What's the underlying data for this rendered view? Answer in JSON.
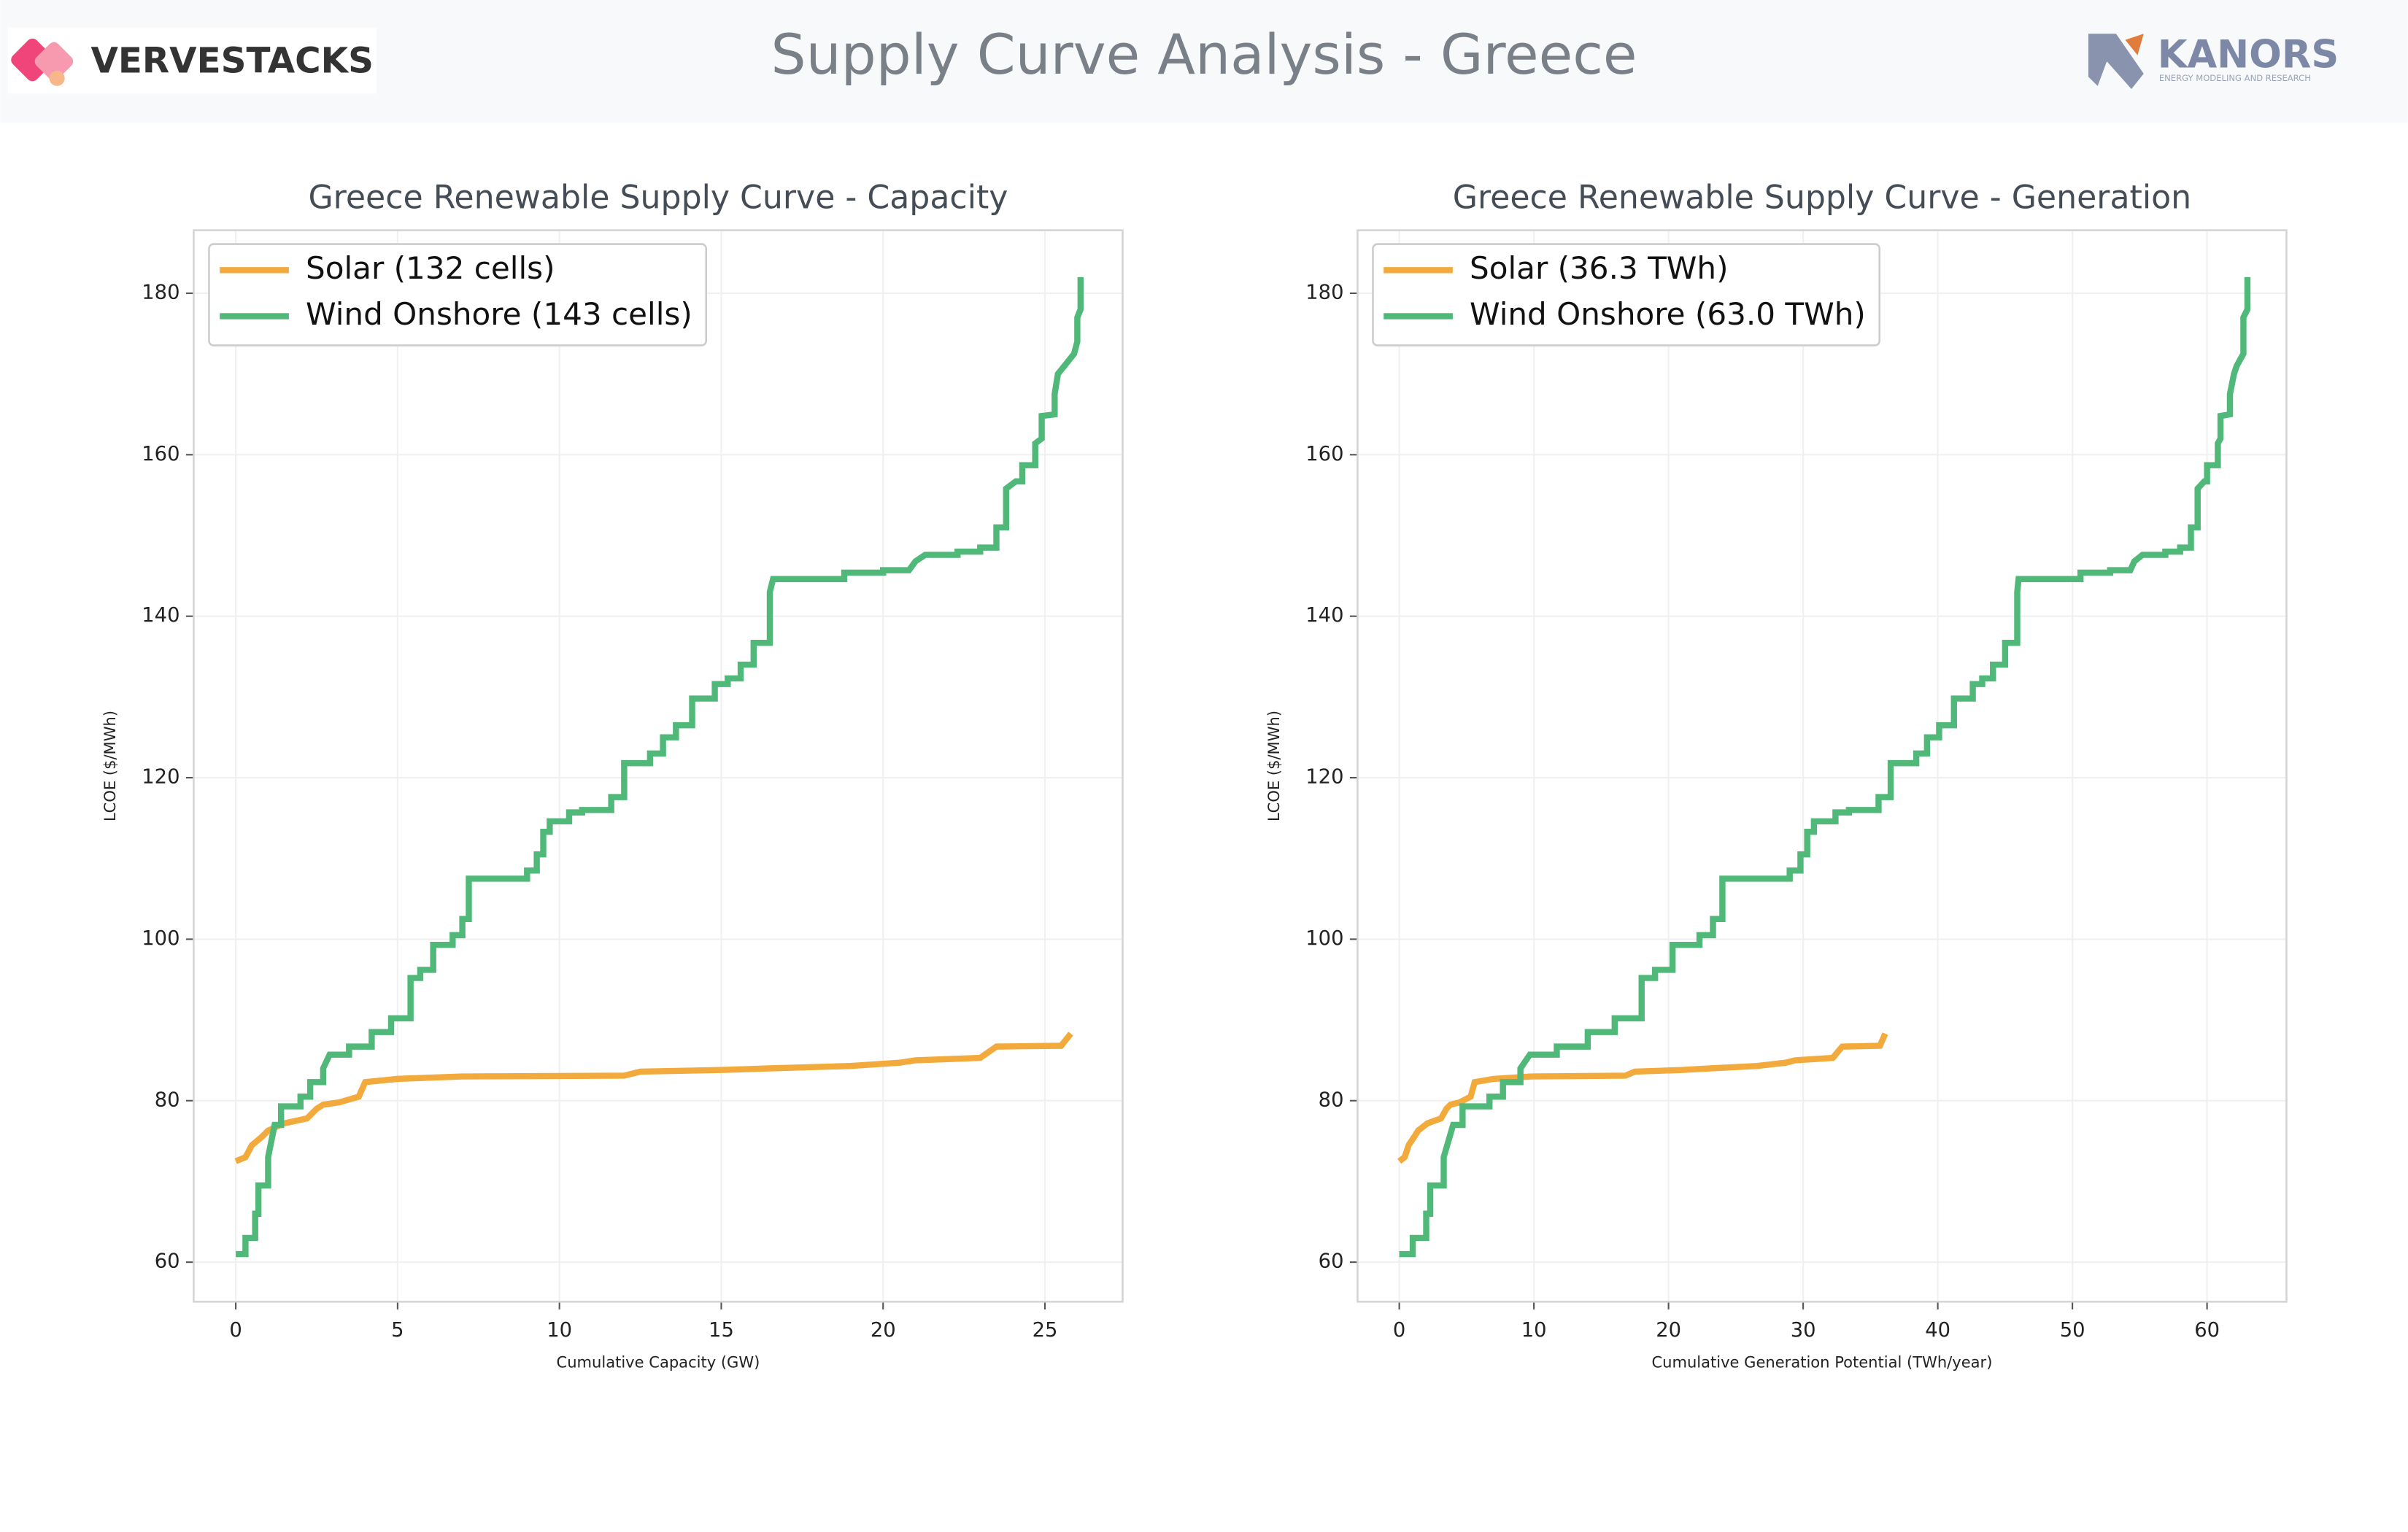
{
  "header": {
    "title": "Supply Curve Analysis - Greece",
    "logo_left": "VERVESTACKS",
    "logo_right": "KANORS",
    "logo_right_tagline": "ENERGY MODELING AND RESEARCH"
  },
  "chart_data": [
    {
      "type": "line",
      "title": "Greece Renewable Supply Curve - Capacity",
      "x_label": "Cumulative Capacity (GW)",
      "y_label": "LCOE ($/MWh)",
      "xlim": [
        -1.3,
        27.4
      ],
      "ylim": [
        55.1,
        187.8
      ],
      "xticks": [
        0,
        5,
        10,
        15,
        20,
        25
      ],
      "yticks": [
        60,
        80,
        100,
        120,
        140,
        160,
        180
      ],
      "grid": true,
      "legend": "upper left",
      "series": [
        {
          "name": "Solar (132 cells)",
          "color": "#f3aa3c",
          "x": [
            0,
            0.3,
            0.5,
            0.8,
            1.0,
            1.5,
            2.2,
            2.5,
            2.7,
            3.2,
            3.8,
            4.0,
            5.0,
            7.0,
            12.0,
            12.5,
            15.0,
            16.5,
            19.0,
            20.5,
            21.0,
            23.0,
            23.5,
            25.5,
            25.8
          ],
          "values": [
            72.5,
            73,
            74.5,
            75.5,
            76.3,
            77.2,
            77.8,
            79,
            79.5,
            79.8,
            80.5,
            82.3,
            82.7,
            83.0,
            83.1,
            83.6,
            83.8,
            84.0,
            84.3,
            84.7,
            85.0,
            85.3,
            86.7,
            86.8,
            88.3
          ]
        },
        {
          "name": "Wind Onshore (143 cells)",
          "color": "#50b878",
          "x": [
            0,
            0.3,
            0.3,
            0.6,
            0.6,
            0.7,
            0.7,
            1.0,
            1.0,
            1.2,
            1.4,
            1.4,
            2.0,
            2.0,
            2.3,
            2.3,
            2.7,
            2.7,
            2.9,
            3.5,
            3.5,
            4.2,
            4.2,
            4.8,
            4.8,
            5.4,
            5.4,
            5.7,
            5.7,
            6.1,
            6.1,
            6.7,
            6.7,
            7.0,
            7.0,
            7.2,
            7.2,
            9.0,
            9.0,
            9.3,
            9.3,
            9.5,
            9.5,
            9.7,
            9.7,
            10.3,
            10.3,
            10.7,
            10.7,
            11.6,
            11.6,
            12.0,
            12.0,
            12.8,
            12.8,
            13.2,
            13.2,
            13.6,
            13.6,
            14.1,
            14.1,
            14.8,
            14.8,
            15.2,
            15.2,
            15.6,
            15.6,
            16.0,
            16.0,
            16.5,
            16.5,
            16.6,
            18.8,
            18.8,
            20.0,
            20.0,
            20.8,
            21.0,
            21.3,
            22.3,
            22.3,
            23.0,
            23.0,
            23.5,
            23.5,
            23.8,
            23.8,
            24.1,
            24.3,
            24.3,
            24.7,
            24.7,
            24.9,
            24.9,
            25.3,
            25.3,
            25.4,
            25.6,
            25.9,
            26.0,
            26.0,
            26.1,
            26.1
          ],
          "values": [
            61,
            61,
            63,
            63,
            66,
            66,
            69.5,
            69.5,
            73,
            77,
            77,
            79.3,
            79.3,
            80.5,
            80.5,
            82.3,
            82.3,
            84,
            85.7,
            85.7,
            86.7,
            86.7,
            88.5,
            88.5,
            90.2,
            90.2,
            95.2,
            95.2,
            96.2,
            96.2,
            99.3,
            99.3,
            100.5,
            100.5,
            102.5,
            102.5,
            107.5,
            107.5,
            108.5,
            108.5,
            110.5,
            110.5,
            113.3,
            113.3,
            114.6,
            114.6,
            115.7,
            115.7,
            116,
            116,
            117.6,
            117.6,
            121.8,
            121.8,
            123,
            123,
            125,
            125,
            126.5,
            126.5,
            129.8,
            129.8,
            131.6,
            131.6,
            132.3,
            132.3,
            134,
            134,
            136.7,
            136.7,
            143,
            144.6,
            144.6,
            145.4,
            145.4,
            145.7,
            145.7,
            146.8,
            147.6,
            147.6,
            148,
            148,
            148.5,
            148.5,
            151,
            151,
            155.8,
            156.7,
            156.7,
            158.7,
            158.7,
            161.4,
            162,
            164.8,
            165,
            167.5,
            170,
            171,
            172.5,
            174,
            177,
            178,
            182
          ]
        }
      ]
    },
    {
      "type": "line",
      "title": "Greece Renewable Supply Curve - Generation",
      "x_label": "Cumulative Generation Potential (TWh/year)",
      "y_label": "LCOE ($/MWh)",
      "xlim": [
        -3.1,
        65.9
      ],
      "ylim": [
        55.1,
        187.8
      ],
      "xticks": [
        0,
        10,
        20,
        30,
        40,
        50,
        60
      ],
      "yticks": [
        60,
        80,
        100,
        120,
        140,
        160,
        180
      ],
      "grid": true,
      "legend": "upper left",
      "series": [
        {
          "name": "Solar (36.3 TWh)",
          "color": "#f3aa3c",
          "x": [
            0,
            0.4,
            0.7,
            1.1,
            1.4,
            2.1,
            3.1,
            3.5,
            3.8,
            4.5,
            5.3,
            5.6,
            7.0,
            9.8,
            16.8,
            17.5,
            21.0,
            23.1,
            26.6,
            28.7,
            29.4,
            32.2,
            32.9,
            35.7,
            36.1
          ],
          "values": [
            72.5,
            73,
            74.5,
            75.5,
            76.3,
            77.2,
            77.8,
            79,
            79.5,
            79.8,
            80.5,
            82.3,
            82.7,
            83.0,
            83.1,
            83.6,
            83.8,
            84.0,
            84.3,
            84.7,
            85.0,
            85.3,
            86.7,
            86.8,
            88.3
          ]
        },
        {
          "name": "Wind Onshore (63.0 TWh)",
          "color": "#50b878",
          "x": [
            0,
            1.0,
            1.0,
            2.0,
            2.0,
            2.3,
            2.3,
            3.3,
            3.3,
            4.0,
            4.7,
            4.7,
            6.7,
            6.7,
            7.7,
            7.7,
            9.0,
            9.0,
            9.7,
            11.7,
            11.7,
            14.0,
            14.0,
            16.0,
            16.0,
            18.0,
            18.0,
            19.0,
            19.0,
            20.3,
            20.3,
            22.3,
            22.3,
            23.3,
            23.3,
            24.0,
            24.0,
            29.0,
            29.0,
            29.8,
            29.8,
            30.3,
            30.3,
            30.8,
            30.8,
            32.4,
            32.4,
            33.4,
            33.4,
            35.6,
            35.6,
            36.5,
            36.5,
            38.4,
            38.4,
            39.2,
            39.2,
            40.1,
            40.1,
            41.2,
            41.2,
            42.6,
            42.6,
            43.3,
            43.3,
            44.1,
            44.1,
            45.0,
            45.0,
            45.9,
            45.9,
            46.0,
            50.6,
            50.6,
            52.8,
            52.8,
            54.3,
            54.6,
            55.2,
            56.9,
            56.9,
            58.0,
            58.0,
            58.8,
            58.8,
            59.3,
            59.3,
            59.8,
            60.0,
            60.0,
            60.8,
            60.8,
            61.0,
            61.0,
            61.7,
            61.7,
            62.0,
            62.2,
            62.7,
            62.7,
            62.7,
            63.0,
            63.0
          ],
          "values": [
            61,
            61,
            63,
            63,
            66,
            66,
            69.5,
            69.5,
            73,
            77,
            77,
            79.3,
            79.3,
            80.5,
            80.5,
            82.3,
            82.3,
            84,
            85.7,
            85.7,
            86.7,
            86.7,
            88.5,
            88.5,
            90.2,
            90.2,
            95.2,
            95.2,
            96.2,
            96.2,
            99.3,
            99.3,
            100.5,
            100.5,
            102.5,
            102.5,
            107.5,
            107.5,
            108.5,
            108.5,
            110.5,
            110.5,
            113.3,
            113.3,
            114.6,
            114.6,
            115.7,
            115.7,
            116,
            116,
            117.6,
            117.6,
            121.8,
            121.8,
            123,
            123,
            125,
            125,
            126.5,
            126.5,
            129.8,
            129.8,
            131.6,
            131.6,
            132.3,
            132.3,
            134,
            134,
            136.7,
            136.7,
            143,
            144.6,
            144.6,
            145.4,
            145.4,
            145.7,
            145.7,
            146.8,
            147.6,
            147.6,
            148,
            148,
            148.5,
            148.5,
            151,
            151,
            155.8,
            156.7,
            156.7,
            158.7,
            158.7,
            161.4,
            162,
            164.8,
            165,
            167.5,
            170,
            171,
            172.5,
            174,
            177,
            178,
            182
          ]
        }
      ]
    }
  ]
}
